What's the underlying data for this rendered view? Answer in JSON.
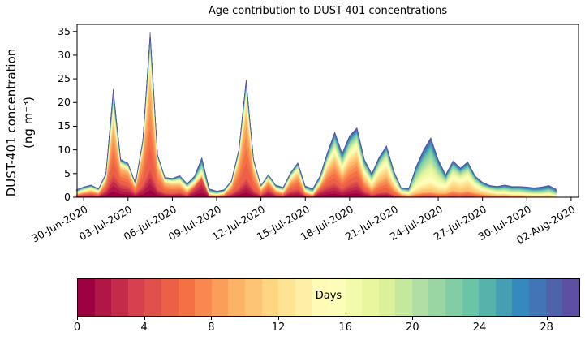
{
  "figure": {
    "title": "Age contribution to DUST-401 concentrations",
    "ylabel_line1": "DUST-401 concentration",
    "ylabel_line2": "(ng m⁻³)"
  },
  "chart_data": {
    "type": "area",
    "stacked": true,
    "title": "Age contribution to DUST-401 concentrations",
    "xlabel": "",
    "ylabel": "DUST-401 concentration (ng m⁻³)",
    "x_tick_labels": [
      "30-Jun-2020",
      "03-Jul-2020",
      "06-Jul-2020",
      "09-Jul-2020",
      "12-Jul-2020",
      "15-Jul-2020",
      "18-Jul-2020",
      "21-Jul-2020",
      "24-Jul-2020",
      "27-Jul-2020",
      "30-Jul-2020",
      "02-Aug-2020"
    ],
    "x_ticks_days": [
      0,
      3,
      6,
      9,
      12,
      15,
      18,
      21,
      24,
      27,
      30,
      33
    ],
    "y_ticks": [
      0,
      5,
      10,
      15,
      20,
      25,
      30,
      35
    ],
    "xlim_days": [
      -0.45,
      33.5
    ],
    "ylim": [
      0,
      36.5
    ],
    "grid": false,
    "x_start_offset_days": -0.5,
    "x_step_days": 0.5,
    "x_reference_date": "30-Jun-2020",
    "total": [
      1.6,
      2.2,
      2.6,
      1.8,
      5.0,
      22.8,
      8.0,
      7.2,
      3.0,
      12.0,
      34.8,
      9.0,
      4.2,
      4.0,
      4.6,
      2.9,
      4.5,
      8.4,
      1.8,
      1.3,
      1.6,
      3.5,
      10.0,
      24.8,
      8.0,
      2.5,
      4.8,
      2.6,
      2.1,
      5.2,
      7.3,
      2.4,
      1.8,
      4.5,
      9.5,
      13.8,
      9.3,
      13.0,
      14.7,
      8.0,
      5.0,
      8.5,
      10.9,
      5.5,
      2.0,
      1.8,
      6.5,
      10.0,
      12.6,
      8.0,
      4.8,
      7.7,
      6.2,
      7.5,
      4.5,
      3.2,
      2.5,
      2.3,
      2.6,
      2.3,
      2.3,
      2.2,
      2.0,
      2.2,
      2.5,
      1.7
    ],
    "age_bands": [
      {
        "name": "0-4 days",
        "values": [
          0.3,
          0.5,
          0.6,
          0.4,
          1.6,
          5.0,
          2.8,
          2.4,
          0.9,
          2.5,
          6.0,
          1.8,
          0.9,
          0.8,
          1.0,
          0.5,
          2.0,
          4.0,
          0.3,
          0.2,
          0.3,
          0.8,
          2.0,
          4.0,
          1.6,
          0.5,
          1.8,
          0.6,
          0.4,
          1.4,
          1.8,
          0.4,
          0.2,
          1.5,
          2.5,
          3.0,
          1.8,
          2.8,
          3.4,
          1.4,
          0.6,
          1.0,
          1.2,
          0.5,
          0.2,
          0.1,
          0.2,
          0.3,
          0.3,
          0.2,
          0.2,
          0.3,
          0.2,
          0.3,
          0.2,
          0.1,
          0.1,
          0.1,
          0.1,
          0.1,
          0.1,
          0.0,
          0.0,
          0.0,
          0.0,
          0.0
        ]
      },
      {
        "name": "5-9 days",
        "values": [
          0.3,
          0.5,
          0.7,
          0.5,
          1.8,
          10.0,
          3.2,
          3.0,
          1.2,
          6.5,
          18.0,
          4.7,
          2.0,
          1.8,
          1.6,
          0.8,
          0.6,
          0.4,
          0.2,
          0.2,
          0.3,
          1.5,
          5.0,
          13.0,
          4.0,
          1.0,
          1.5,
          0.8,
          0.5,
          1.8,
          2.8,
          0.6,
          0.3,
          1.0,
          3.0,
          4.5,
          2.7,
          4.0,
          4.6,
          2.2,
          1.2,
          2.5,
          3.3,
          1.4,
          0.4,
          0.3,
          0.6,
          0.8,
          0.9,
          0.7,
          0.7,
          1.2,
          1.0,
          1.2,
          0.8,
          0.6,
          0.4,
          0.3,
          0.3,
          0.2,
          0.2,
          0.2,
          0.2,
          0.2,
          0.2,
          0.1
        ]
      },
      {
        "name": "10-14 days",
        "values": [
          0.3,
          0.4,
          0.5,
          0.3,
          0.7,
          3.0,
          0.8,
          0.8,
          0.4,
          1.5,
          5.5,
          1.3,
          0.6,
          0.6,
          0.8,
          0.6,
          0.6,
          0.8,
          0.3,
          0.2,
          0.3,
          0.5,
          1.5,
          4.0,
          1.2,
          0.4,
          0.6,
          0.4,
          0.4,
          0.8,
          1.2,
          0.4,
          0.3,
          0.6,
          1.5,
          2.2,
          1.6,
          2.2,
          2.5,
          1.5,
          1.1,
          2.0,
          2.6,
          1.3,
          0.5,
          0.4,
          1.2,
          1.8,
          2.2,
          1.5,
          1.3,
          2.6,
          2.1,
          2.6,
          1.4,
          0.9,
          0.7,
          0.5,
          0.5,
          0.4,
          0.4,
          0.4,
          0.3,
          0.3,
          0.4,
          0.2
        ]
      },
      {
        "name": "15-19 days",
        "values": [
          0.3,
          0.3,
          0.3,
          0.3,
          0.4,
          2.0,
          0.5,
          0.4,
          0.2,
          0.7,
          2.5,
          0.6,
          0.3,
          0.4,
          0.5,
          0.4,
          0.5,
          1.0,
          0.3,
          0.2,
          0.3,
          0.3,
          0.7,
          1.8,
          0.6,
          0.3,
          0.4,
          0.3,
          0.3,
          0.5,
          0.6,
          0.4,
          0.3,
          0.5,
          1.0,
          1.6,
          1.2,
          1.6,
          1.8,
          1.2,
          0.9,
          1.4,
          1.8,
          1.0,
          0.4,
          0.4,
          2.0,
          3.2,
          4.2,
          2.6,
          1.2,
          1.8,
          1.4,
          1.7,
          1.0,
          0.7,
          0.6,
          0.6,
          0.7,
          0.6,
          0.6,
          0.5,
          0.5,
          0.5,
          0.6,
          0.4
        ]
      },
      {
        "name": "20-24 days",
        "values": [
          0.2,
          0.3,
          0.3,
          0.2,
          0.3,
          1.5,
          0.4,
          0.3,
          0.2,
          0.5,
          1.5,
          0.4,
          0.2,
          0.2,
          0.4,
          0.3,
          0.4,
          1.1,
          0.4,
          0.3,
          0.2,
          0.2,
          0.5,
          1.2,
          0.4,
          0.2,
          0.3,
          0.3,
          0.3,
          0.4,
          0.5,
          0.3,
          0.4,
          0.5,
          0.8,
          1.4,
          1.1,
          1.3,
          1.4,
          1.0,
          0.7,
          0.9,
          1.2,
          0.8,
          0.3,
          0.4,
          1.6,
          2.5,
          3.2,
          1.9,
          0.8,
          1.1,
          0.9,
          1.0,
          0.7,
          0.5,
          0.4,
          0.5,
          0.6,
          0.6,
          0.6,
          0.6,
          0.5,
          0.6,
          0.7,
          0.5
        ]
      },
      {
        "name": "25-29 days",
        "values": [
          0.2,
          0.2,
          0.2,
          0.1,
          0.2,
          1.3,
          0.3,
          0.3,
          0.1,
          0.3,
          1.3,
          0.2,
          0.2,
          0.2,
          0.3,
          0.3,
          0.4,
          1.1,
          0.3,
          0.2,
          0.2,
          0.2,
          0.3,
          0.8,
          0.2,
          0.1,
          0.2,
          0.2,
          0.2,
          0.3,
          0.4,
          0.3,
          0.3,
          0.4,
          0.7,
          1.1,
          0.9,
          1.1,
          1.0,
          0.7,
          0.5,
          0.7,
          0.8,
          0.5,
          0.2,
          0.2,
          0.9,
          1.4,
          1.8,
          1.1,
          0.6,
          0.7,
          0.6,
          0.7,
          0.4,
          0.4,
          0.3,
          0.3,
          0.4,
          0.4,
          0.4,
          0.5,
          0.5,
          0.6,
          0.6,
          0.5
        ]
      }
    ],
    "colormap": {
      "name": "Spectral",
      "anchors": [
        "#9e0142",
        "#d53e4f",
        "#f46d43",
        "#fdae61",
        "#fee08b",
        "#ffffbf",
        "#e6f598",
        "#abdda4",
        "#66c2a5",
        "#3288bd",
        "#5e4fa2"
      ]
    },
    "colorbar": {
      "label": "Days",
      "vmin": 0,
      "vmax": 30,
      "ticks": [
        0,
        4,
        8,
        12,
        16,
        20,
        24,
        28
      ],
      "n_segments": 30,
      "orientation": "horizontal"
    }
  }
}
